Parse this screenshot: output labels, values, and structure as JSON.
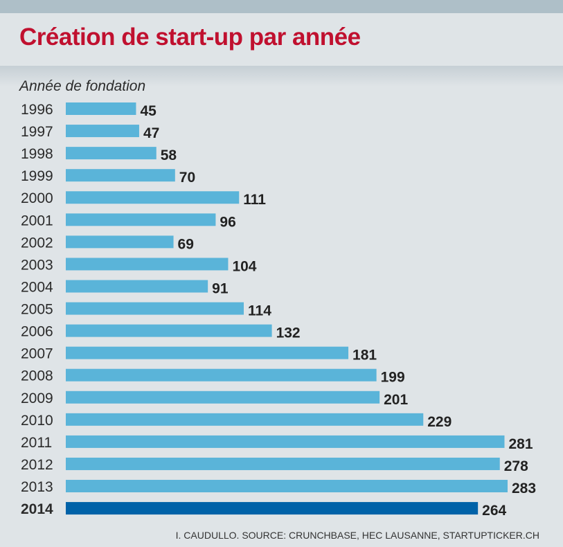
{
  "chart_data": {
    "type": "bar",
    "orientation": "horizontal",
    "title": "Création de start-up par année",
    "ylabel": "Année de fondation",
    "xlabel": "",
    "categories": [
      "1996",
      "1997",
      "1998",
      "1999",
      "2000",
      "2001",
      "2002",
      "2003",
      "2004",
      "2005",
      "2006",
      "2007",
      "2008",
      "2009",
      "2010",
      "2011",
      "2012",
      "2013",
      "2014"
    ],
    "values": [
      45,
      47,
      58,
      70,
      111,
      96,
      69,
      104,
      91,
      114,
      132,
      181,
      199,
      201,
      229,
      281,
      278,
      283,
      264
    ],
    "highlight": "2014",
    "xlim": [
      0,
      283
    ],
    "grid": false,
    "colors": {
      "bar": "#5ab4d9",
      "highlight": "#0062a8",
      "title": "#c0102f"
    }
  },
  "source": "I. CAUDULLO. SOURCE: CRUNCHBASE, HEC LAUSANNE, STARTUPTICKER.CH"
}
